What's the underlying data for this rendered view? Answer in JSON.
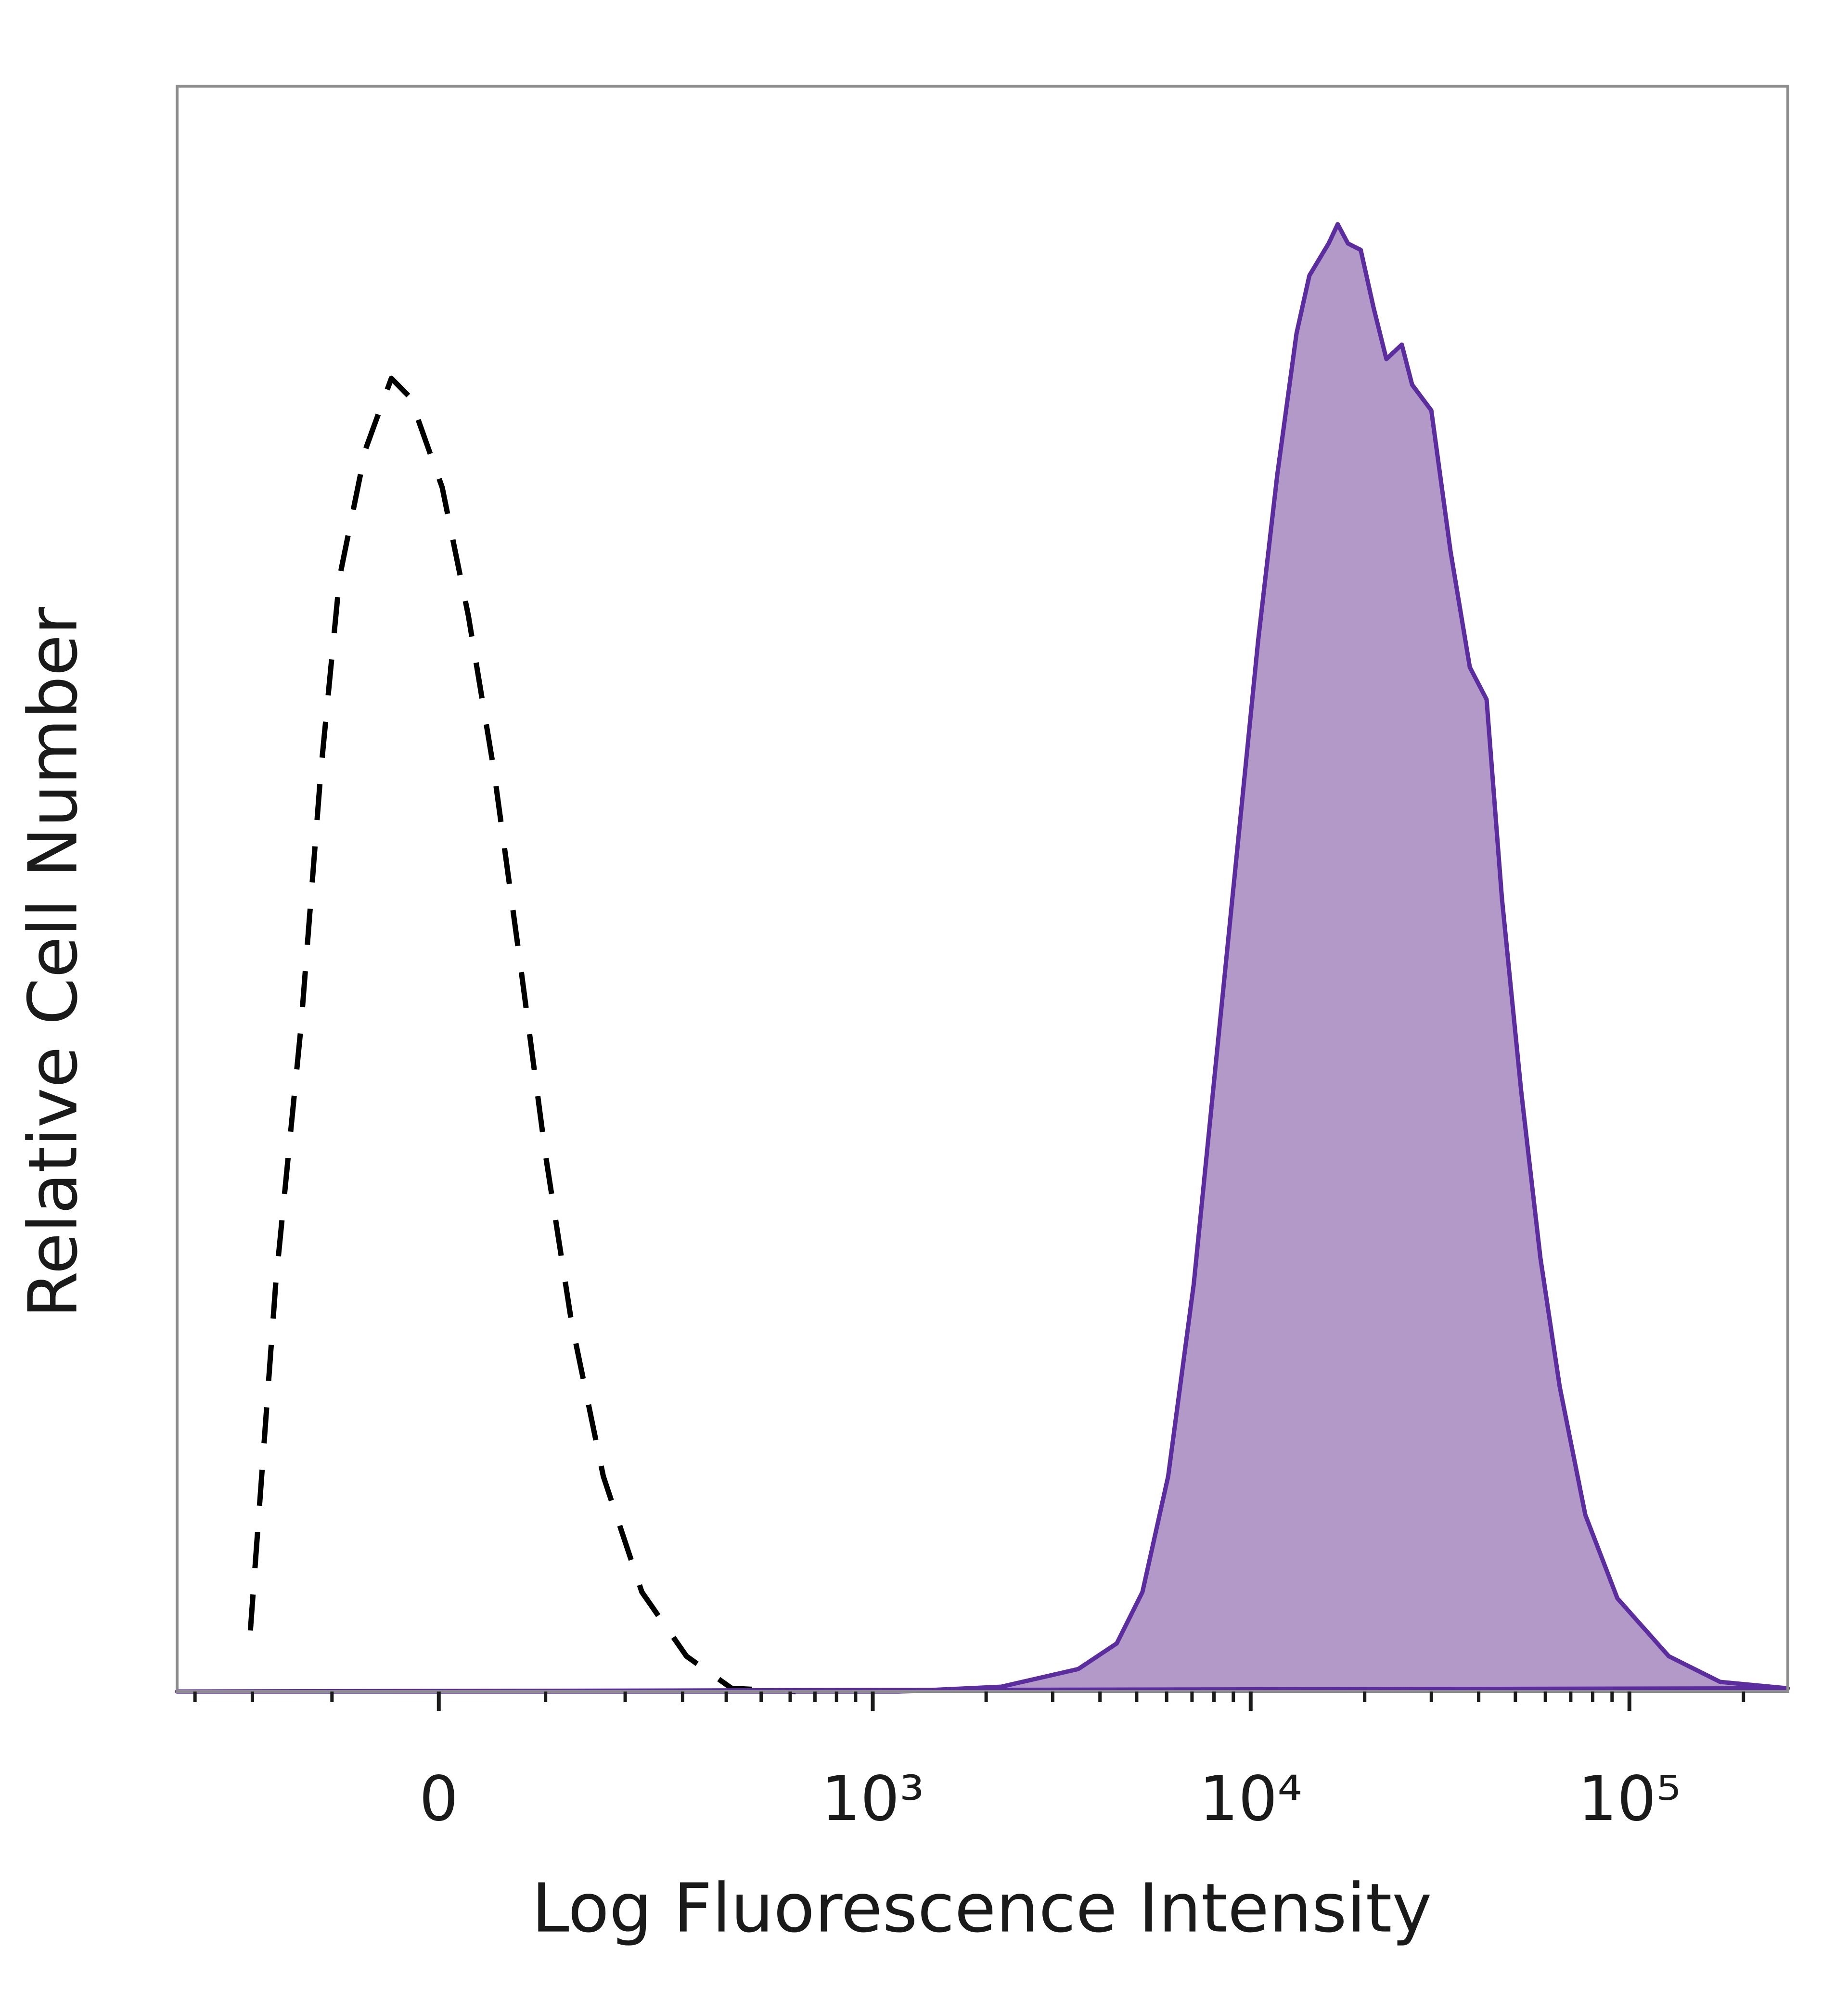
{
  "chart_data": {
    "type": "area",
    "xlabel": "Log Fluorescence Intensity",
    "ylabel": "Relative Cell Number",
    "xscale": "arcsinh",
    "xlim": [
      -338,
      262000
    ],
    "ylim": [
      0,
      100
    ],
    "xticks": [
      0,
      {
        "value": 1000,
        "label": "10³"
      },
      {
        "value": 10000,
        "label": "10⁴"
      },
      {
        "value": 100000,
        "label": "10⁵"
      }
    ],
    "xminorticks": [
      -300,
      -200,
      -100,
      100,
      200,
      300,
      400,
      500,
      600,
      700,
      800,
      900,
      2000,
      3000,
      4000,
      5000,
      6000,
      7000,
      8000,
      9000,
      20000,
      30000,
      40000,
      50000,
      60000,
      70000,
      80000,
      90000,
      200000
    ],
    "series": [
      {
        "color": "#000000",
        "style": "dashed",
        "fill": "none",
        "x": [
          -203,
          -167,
          -135,
          -112,
          -92,
          -66,
          -42,
          -25,
          3,
          26,
          49,
          74,
          100,
          129,
          169,
          226,
          308,
          414,
          621
        ],
        "values": [
          3.8,
          25.4,
          41.4,
          57.4,
          69.4,
          77.4,
          81.8,
          80.6,
          75.0,
          67.0,
          57.4,
          45.4,
          33.4,
          23.0,
          13.4,
          6.2,
          2.2,
          0.2,
          0
        ]
      },
      {
        "color": "#5b2d9e",
        "style": "solid",
        "fill": "#b399c8",
        "x": [
          -338,
          1171,
          2193,
          3504,
          4430,
          5178,
          6054,
          7077,
          8274,
          9303,
          10457,
          11755,
          13216,
          14291,
          16066,
          16971,
          18063,
          19529,
          21110,
          22820,
          25061,
          26685,
          29990,
          33712,
          37908,
          41960,
          46070,
          51790,
          58227,
          65455,
          76491,
          92974,
          127031,
          173590,
          262000
        ],
        "values": [
          0,
          0,
          0.3,
          1.4,
          3.0,
          6.2,
          13.4,
          25.4,
          41.4,
          53.4,
          65.4,
          75.8,
          84.6,
          88.2,
          90.2,
          91.4,
          90.2,
          89.8,
          86.2,
          83.0,
          83.9,
          81.4,
          79.8,
          71.0,
          63.8,
          61.8,
          49.4,
          37.4,
          27.0,
          19.0,
          11.0,
          5.8,
          2.2,
          0.6,
          0.2
        ]
      }
    ]
  }
}
